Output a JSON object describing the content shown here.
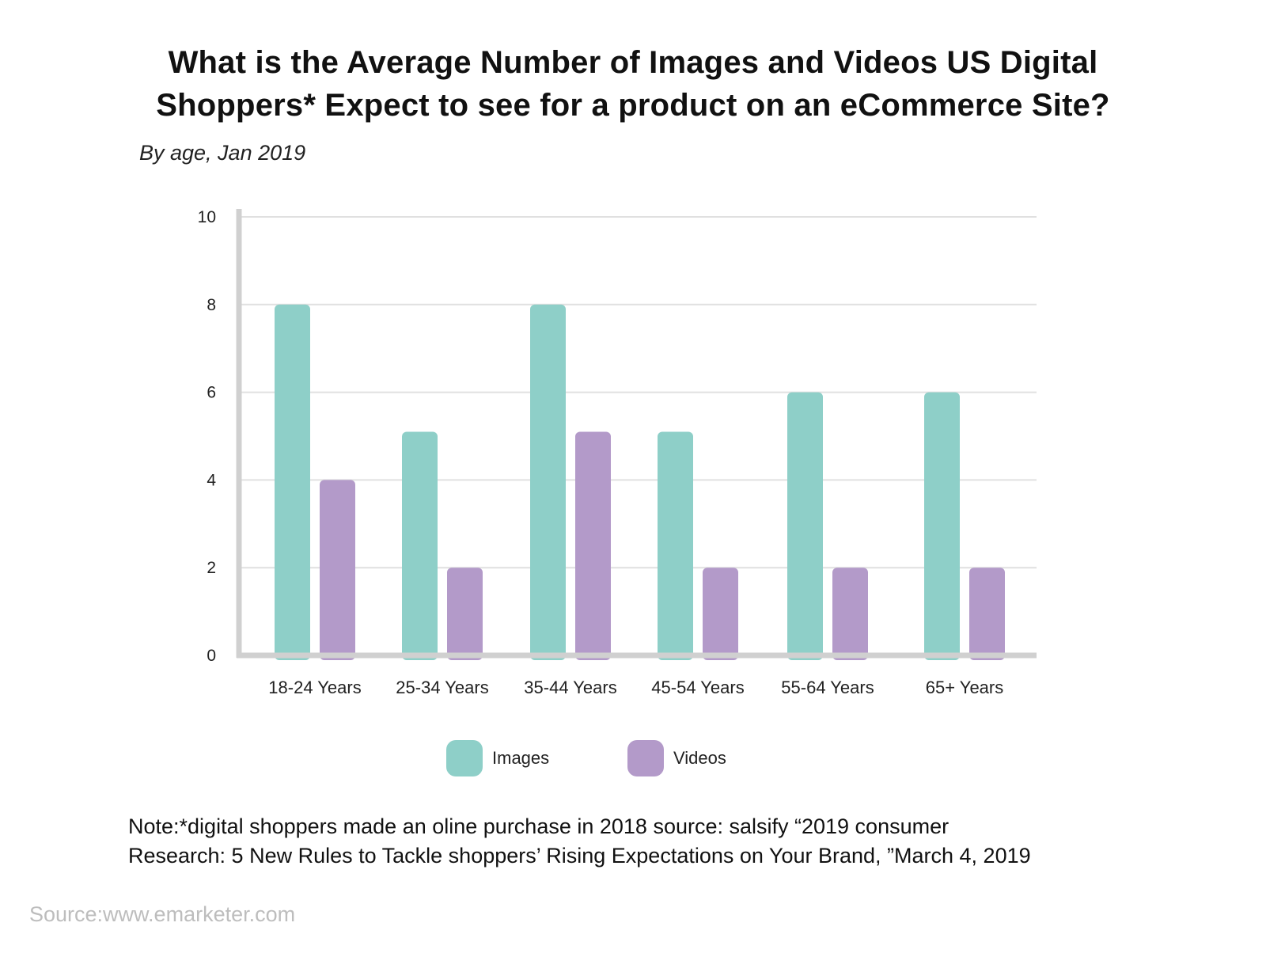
{
  "title_lines": [
    "What is the Average Number of Images and Videos US Digital",
    "Shoppers* Expect to see for a product on an eCommerce Site?"
  ],
  "subtitle": "By age, Jan 2019",
  "colors": {
    "images": "#8ecfc8",
    "videos": "#b39ac9",
    "axis": "#d0d0d0",
    "grid": "#e0e0e0"
  },
  "chart_data": {
    "type": "bar",
    "categories": [
      "18-24 Years",
      "25-34 Years",
      "35-44 Years",
      "45-54 Years",
      "55-64 Years",
      "65+ Years"
    ],
    "series": [
      {
        "name": "Images",
        "values": [
          8,
          5.1,
          8,
          5.1,
          6,
          6
        ]
      },
      {
        "name": "Videos",
        "values": [
          4,
          2,
          5.1,
          2,
          2,
          2
        ]
      }
    ],
    "ylim": [
      0,
      10
    ],
    "yticks": [
      0,
      2,
      4,
      6,
      8,
      10
    ],
    "grid": true,
    "legend_position": "bottom"
  },
  "legend": {
    "images_label": "Images",
    "videos_label": "Videos"
  },
  "note_lines": [
    "Note:*digital shoppers made an oline purchase in 2018 source: salsify “2019 consumer",
    "Research: 5 New Rules to Tackle shoppers’ Rising Expectations on Your Brand, ”March 4, 2019"
  ],
  "source": "Source:www.emarketer.com"
}
